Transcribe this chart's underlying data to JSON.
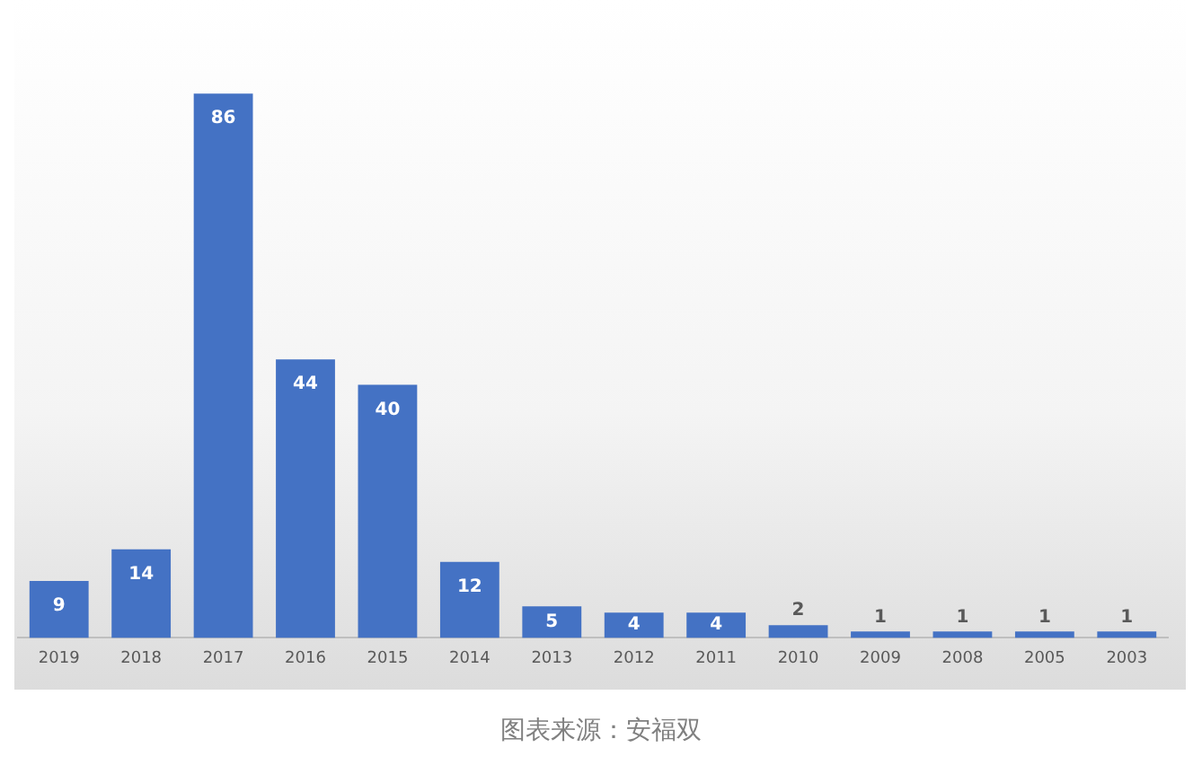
{
  "chart_data": {
    "type": "bar",
    "categories": [
      "2019",
      "2018",
      "2017",
      "2016",
      "2015",
      "2014",
      "2013",
      "2012",
      "2011",
      "2010",
      "2009",
      "2008",
      "2005",
      "2003"
    ],
    "values": [
      9,
      14,
      86,
      44,
      40,
      12,
      5,
      4,
      4,
      2,
      1,
      1,
      1,
      1
    ],
    "color": "#4472c4",
    "data_labels": true,
    "grid": false,
    "legend": false,
    "tick_labels": "x",
    "annotations": [
      "图表来源：安福双"
    ]
  }
}
